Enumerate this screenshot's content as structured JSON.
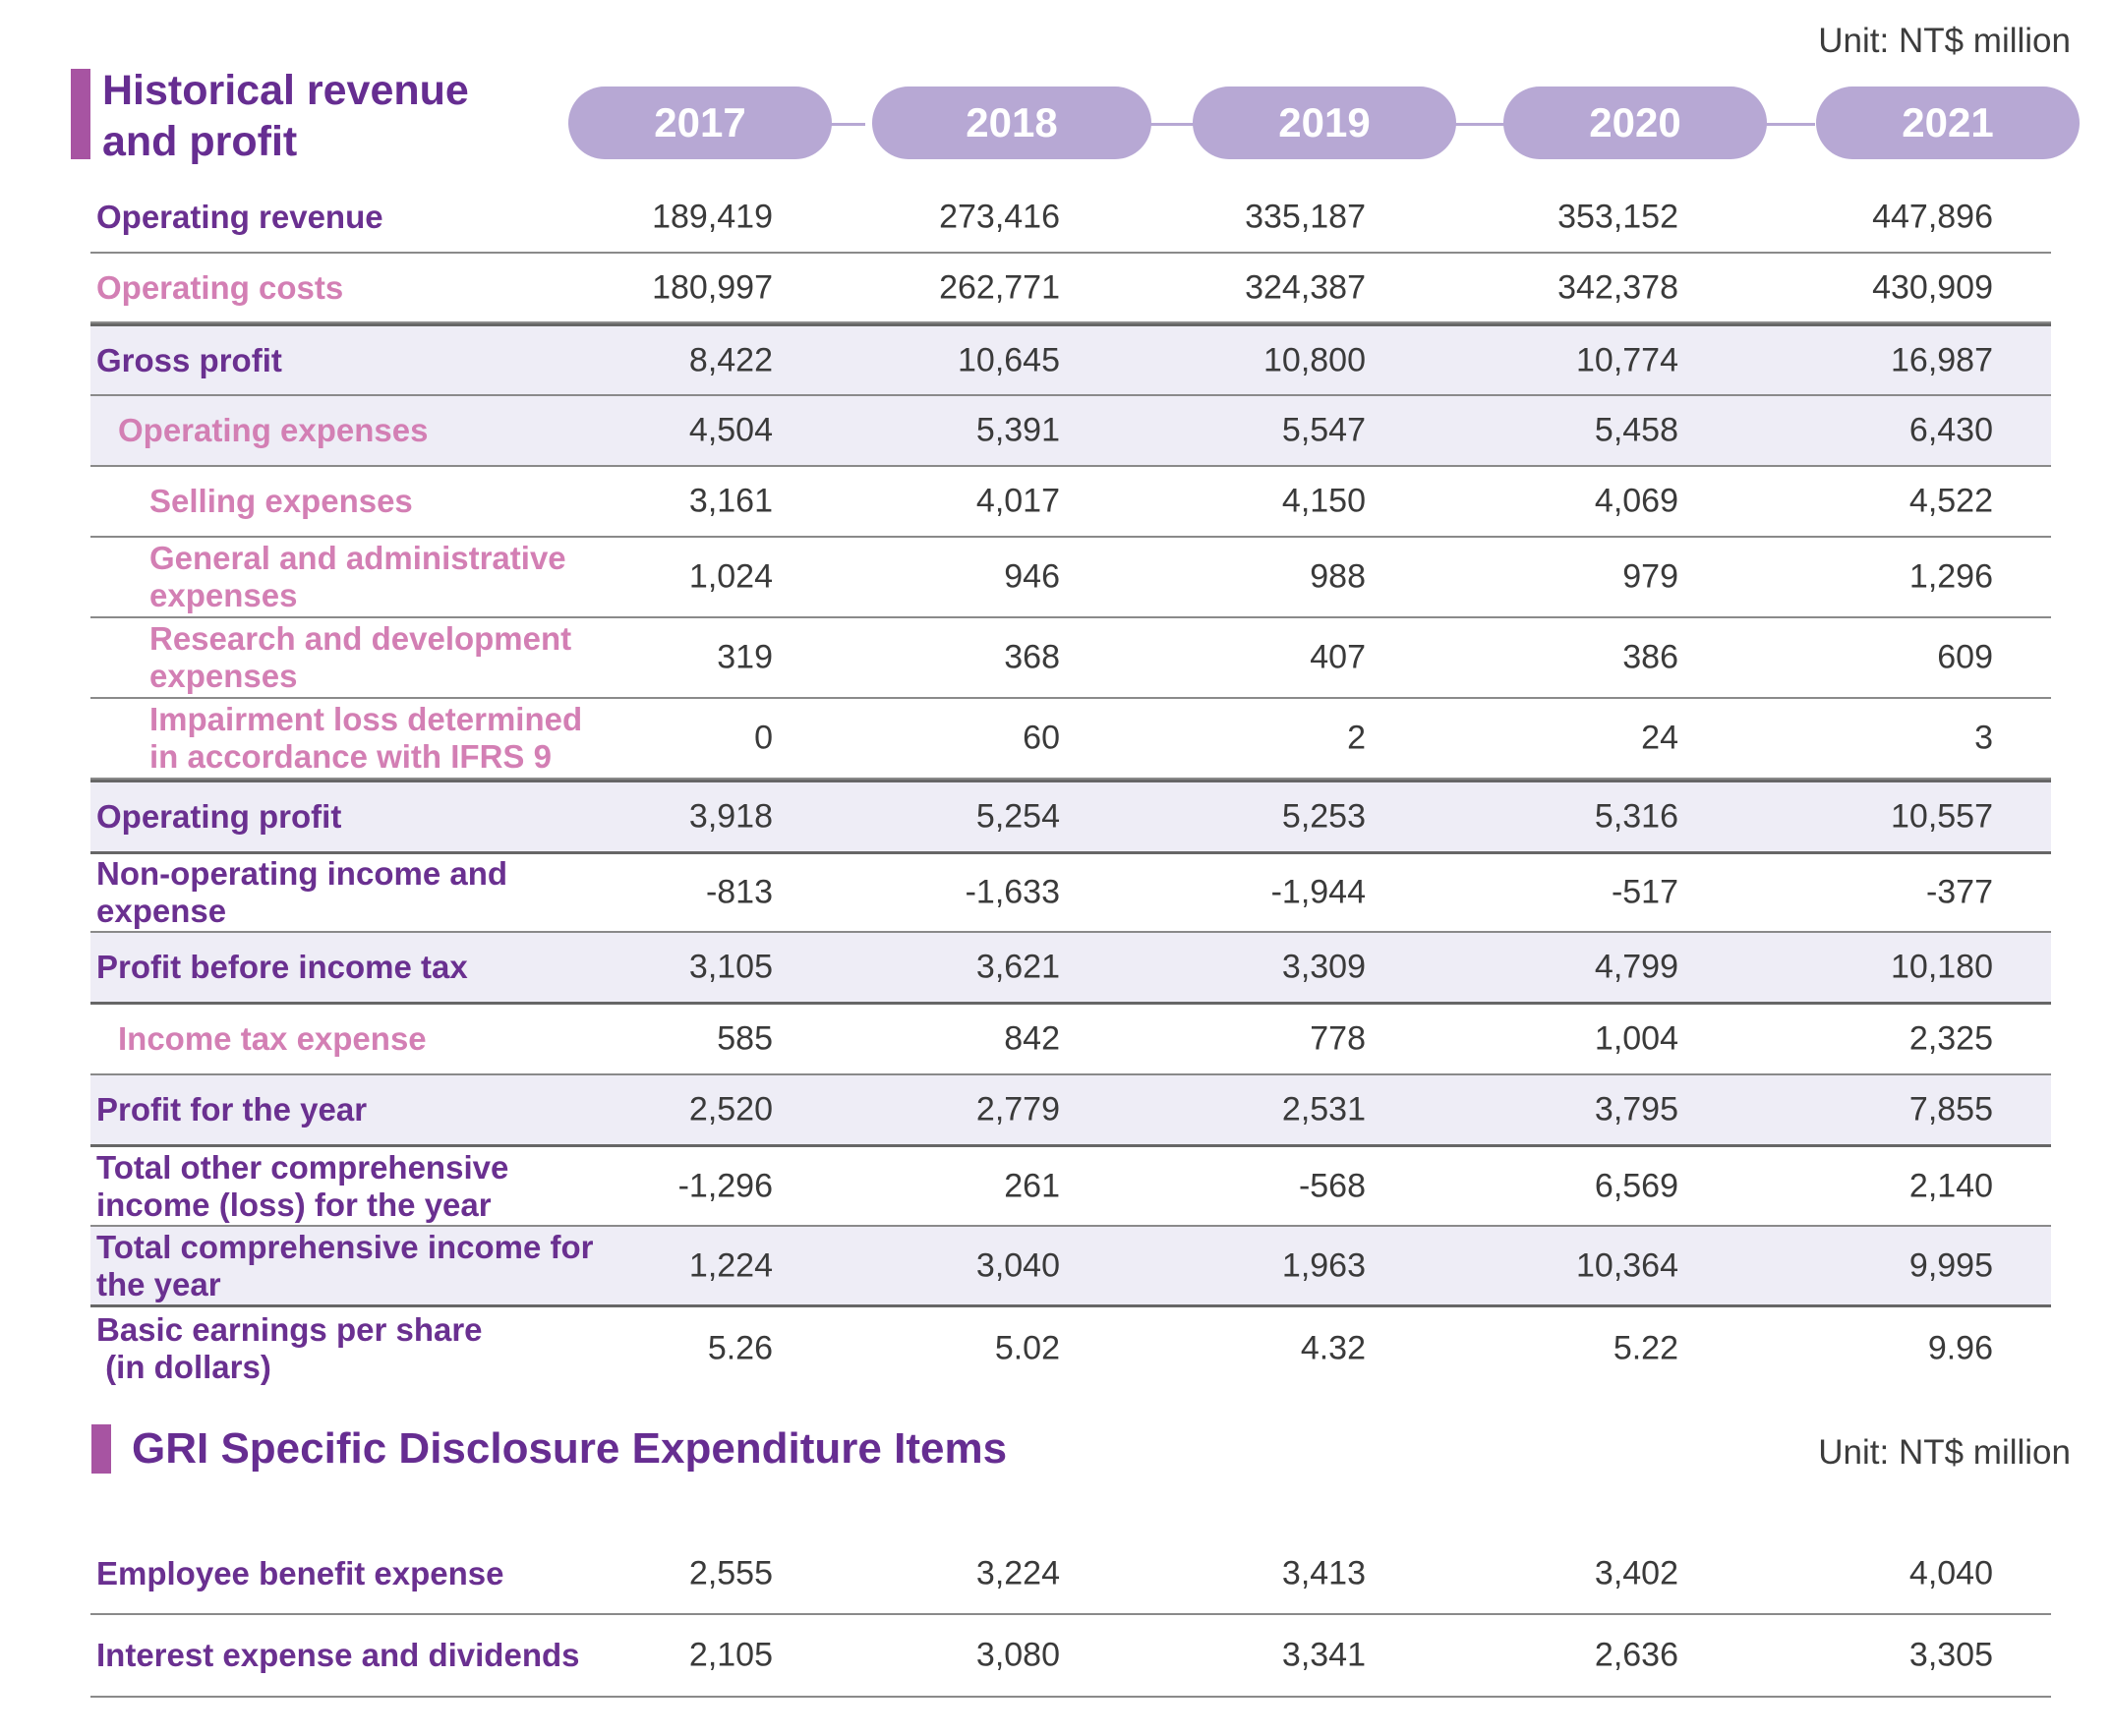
{
  "unit_label": "Unit: NT$ million",
  "main_title": "Historical revenue\nand profit",
  "years": [
    "2017",
    "2018",
    "2019",
    "2020",
    "2021"
  ],
  "rows": [
    {
      "label": "Operating revenue",
      "values": [
        "189,419",
        "273,416",
        "335,187",
        "353,152",
        "447,896"
      ]
    },
    {
      "label": "Operating costs",
      "values": [
        "180,997",
        "262,771",
        "324,387",
        "342,378",
        "430,909"
      ]
    },
    {
      "label": "Gross profit",
      "values": [
        "8,422",
        "10,645",
        "10,800",
        "10,774",
        "16,987"
      ]
    },
    {
      "label": "Operating expenses",
      "values": [
        "4,504",
        "5,391",
        "5,547",
        "5,458",
        "6,430"
      ]
    },
    {
      "label": "Selling expenses",
      "values": [
        "3,161",
        "4,017",
        "4,150",
        "4,069",
        "4,522"
      ]
    },
    {
      "label": "General and administrative\nexpenses",
      "values": [
        "1,024",
        "946",
        "988",
        "979",
        "1,296"
      ]
    },
    {
      "label": "Research and development\nexpenses",
      "values": [
        "319",
        "368",
        "407",
        "386",
        "609"
      ]
    },
    {
      "label": "Impairment loss determined\nin accordance with IFRS 9",
      "values": [
        "0",
        "60",
        "2",
        "24",
        "3"
      ]
    },
    {
      "label": "Operating profit",
      "values": [
        "3,918",
        "5,254",
        "5,253",
        "5,316",
        "10,557"
      ]
    },
    {
      "label": "Non-operating income and\nexpense",
      "values": [
        "-813",
        "-1,633",
        "-1,944",
        "-517",
        "-377"
      ]
    },
    {
      "label": "Profit before income tax",
      "values": [
        "3,105",
        "3,621",
        "3,309",
        "4,799",
        "10,180"
      ]
    },
    {
      "label": "Income tax expense",
      "values": [
        "585",
        "842",
        "778",
        "1,004",
        "2,325"
      ]
    },
    {
      "label": "Profit for the year",
      "values": [
        "2,520",
        "2,779",
        "2,531",
        "3,795",
        "7,855"
      ]
    },
    {
      "label": "Total other comprehensive\nincome (loss) for the year",
      "values": [
        "-1,296",
        "261",
        "-568",
        "6,569",
        "2,140"
      ]
    },
    {
      "label": "Total comprehensive income for\nthe year",
      "values": [
        "1,224",
        "3,040",
        "1,963",
        "10,364",
        "9,995"
      ]
    },
    {
      "label": "Basic earnings per share\n (in dollars)",
      "values": [
        "5.26",
        "5.02",
        "4.32",
        "5.22",
        "9.96"
      ]
    }
  ],
  "gri_title": "GRI Specific Disclosure Expenditure Items",
  "gri_rows": [
    {
      "label": "Employee benefit expense",
      "values": [
        "2,555",
        "3,224",
        "3,413",
        "3,402",
        "4,040"
      ]
    },
    {
      "label": "Interest expense and dividends",
      "values": [
        "2,105",
        "3,080",
        "3,341",
        "2,636",
        "3,305"
      ]
    }
  ],
  "colors": {
    "accent_purple": "#662d91",
    "title_bar": "#a754a2",
    "pink_label": "#d37fb4",
    "year_pill": "#b7a8d4",
    "shade": "#eeedf6"
  }
}
